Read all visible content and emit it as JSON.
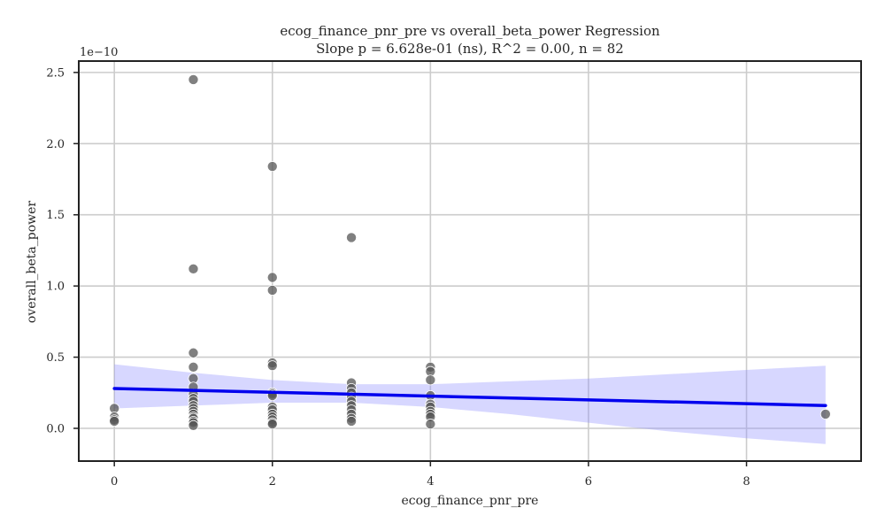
{
  "chart_data": {
    "type": "scatter",
    "title": "ecog_finance_pnr_pre vs overall_beta_power Regression",
    "subtitle": "Slope p = 6.628e-01 (ns), R^2 = 0.00, n = 82",
    "xlabel": "ecog_finance_pnr_pre",
    "ylabel": "overall_beta_power",
    "y_offset_label": "1e−10",
    "xlim": [
      -0.45,
      9.45
    ],
    "ylim": [
      -0.23,
      2.58
    ],
    "x_ticks": [
      0,
      2,
      4,
      6,
      8
    ],
    "x_tick_labels": [
      "0",
      "2",
      "4",
      "6",
      "8"
    ],
    "y_ticks": [
      0.0,
      0.5,
      1.0,
      1.5,
      2.0,
      2.5
    ],
    "y_tick_labels": [
      "0.0",
      "0.5",
      "1.0",
      "1.5",
      "2.0",
      "2.5"
    ],
    "grid": true,
    "y_units_note": "values in units of 1e-10",
    "points": [
      {
        "x": 0,
        "y": 0.14
      },
      {
        "x": 0,
        "y": 0.08
      },
      {
        "x": 0,
        "y": 0.06
      },
      {
        "x": 0,
        "y": 0.05
      },
      {
        "x": 1,
        "y": 2.45
      },
      {
        "x": 1,
        "y": 1.12
      },
      {
        "x": 1,
        "y": 0.53
      },
      {
        "x": 1,
        "y": 0.43
      },
      {
        "x": 1,
        "y": 0.35
      },
      {
        "x": 1,
        "y": 0.29
      },
      {
        "x": 1,
        "y": 0.24
      },
      {
        "x": 1,
        "y": 0.21
      },
      {
        "x": 1,
        "y": 0.19
      },
      {
        "x": 1,
        "y": 0.16
      },
      {
        "x": 1,
        "y": 0.14
      },
      {
        "x": 1,
        "y": 0.12
      },
      {
        "x": 1,
        "y": 0.1
      },
      {
        "x": 1,
        "y": 0.08
      },
      {
        "x": 1,
        "y": 0.07
      },
      {
        "x": 1,
        "y": 0.05
      },
      {
        "x": 1,
        "y": 0.04
      },
      {
        "x": 1,
        "y": 0.02
      },
      {
        "x": 2,
        "y": 1.84
      },
      {
        "x": 2,
        "y": 1.06
      },
      {
        "x": 2,
        "y": 0.97
      },
      {
        "x": 2,
        "y": 0.46
      },
      {
        "x": 2,
        "y": 0.44
      },
      {
        "x": 2,
        "y": 0.25
      },
      {
        "x": 2,
        "y": 0.24
      },
      {
        "x": 2,
        "y": 0.23
      },
      {
        "x": 2,
        "y": 0.15
      },
      {
        "x": 2,
        "y": 0.13
      },
      {
        "x": 2,
        "y": 0.1
      },
      {
        "x": 2,
        "y": 0.08
      },
      {
        "x": 2,
        "y": 0.06
      },
      {
        "x": 2,
        "y": 0.04
      },
      {
        "x": 2,
        "y": 0.03
      },
      {
        "x": 3,
        "y": 1.34
      },
      {
        "x": 3,
        "y": 0.32
      },
      {
        "x": 3,
        "y": 0.28
      },
      {
        "x": 3,
        "y": 0.25
      },
      {
        "x": 3,
        "y": 0.22
      },
      {
        "x": 3,
        "y": 0.19
      },
      {
        "x": 3,
        "y": 0.16
      },
      {
        "x": 3,
        "y": 0.13
      },
      {
        "x": 3,
        "y": 0.1
      },
      {
        "x": 3,
        "y": 0.07
      },
      {
        "x": 3,
        "y": 0.05
      },
      {
        "x": 4,
        "y": 0.43
      },
      {
        "x": 4,
        "y": 0.4
      },
      {
        "x": 4,
        "y": 0.34
      },
      {
        "x": 4,
        "y": 0.23
      },
      {
        "x": 4,
        "y": 0.17
      },
      {
        "x": 4,
        "y": 0.15
      },
      {
        "x": 4,
        "y": 0.12
      },
      {
        "x": 4,
        "y": 0.1
      },
      {
        "x": 4,
        "y": 0.08
      },
      {
        "x": 4,
        "y": 0.03
      },
      {
        "x": 9,
        "y": 0.1
      }
    ],
    "regression": {
      "x": [
        0,
        9
      ],
      "y": [
        0.28,
        0.16
      ],
      "ci_upper": [
        [
          0,
          0.45
        ],
        [
          1,
          0.39
        ],
        [
          2,
          0.34
        ],
        [
          3,
          0.31
        ],
        [
          4,
          0.31
        ],
        [
          5,
          0.33
        ],
        [
          6,
          0.35
        ],
        [
          7,
          0.38
        ],
        [
          8,
          0.41
        ],
        [
          9,
          0.44
        ]
      ],
      "ci_lower": [
        [
          0,
          0.14
        ],
        [
          1,
          0.16
        ],
        [
          2,
          0.18
        ],
        [
          3,
          0.18
        ],
        [
          4,
          0.15
        ],
        [
          5,
          0.1
        ],
        [
          6,
          0.04
        ],
        [
          7,
          -0.02
        ],
        [
          8,
          -0.07
        ],
        [
          9,
          -0.11
        ]
      ]
    },
    "colors": {
      "points": "#555555",
      "regression_line": "#0000ee",
      "confidence_band": "#8c8cff",
      "grid": "#cccccc",
      "axes": "#222222"
    }
  }
}
